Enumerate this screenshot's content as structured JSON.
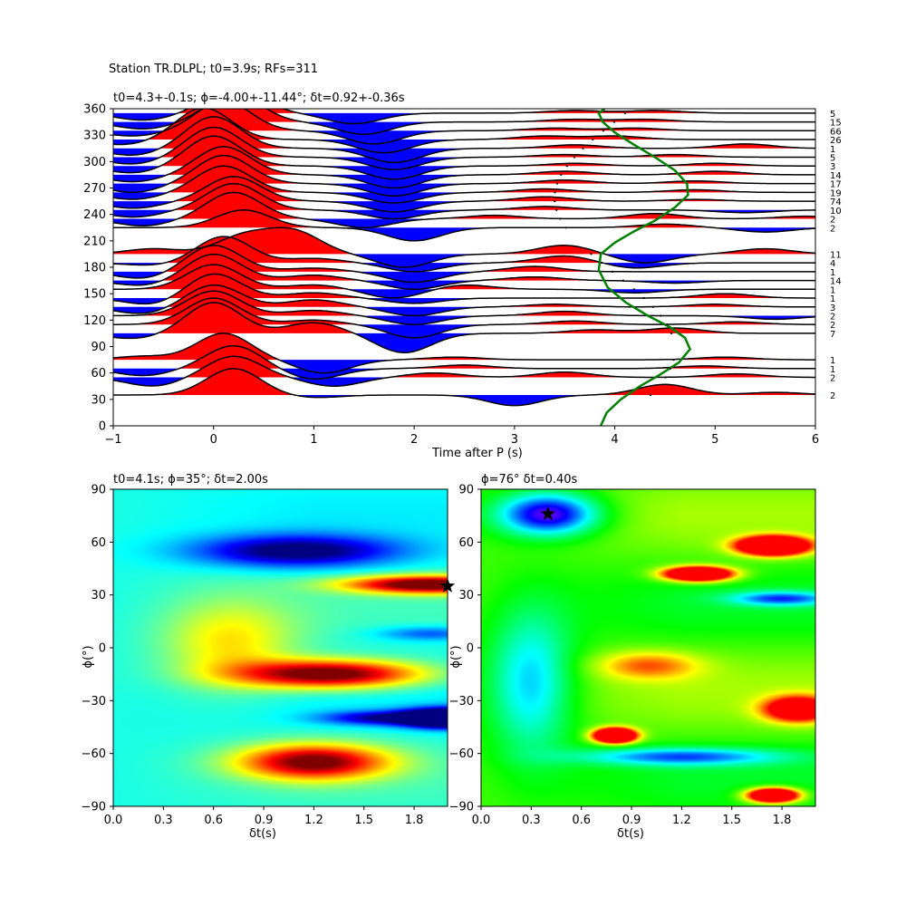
{
  "figure": {
    "suptitle": "Station TR.DLPL; t0=3.9s; RFs=311"
  },
  "chart_data": [
    {
      "type": "line",
      "panel": "receiver-functions-by-backazimuth",
      "title": "t0=4.3+-0.1s; ϕ=-4.00+-11.44°; δt=0.92+-0.36s",
      "xlabel": "Time after P (s)",
      "ylabel": "",
      "xlim": [
        -1,
        6
      ],
      "ylim": [
        0,
        360
      ],
      "xticks": [
        "−1",
        "0",
        "1",
        "2",
        "3",
        "4",
        "5",
        "6"
      ],
      "yticks": [
        "0",
        "30",
        "60",
        "90",
        "120",
        "150",
        "180",
        "210",
        "240",
        "270",
        "300",
        "330",
        "360"
      ],
      "fill_colors": {
        "positive": "#ff0000",
        "negative": "#0000ff"
      },
      "traces": [
        {
          "baz": 35,
          "count": "2",
          "peaks": [
            [
              0.2,
              30
            ],
            [
              1.0,
              -3
            ],
            [
              3.0,
              -12
            ],
            [
              4.5,
              12
            ],
            [
              5.6,
              3
            ]
          ]
        },
        {
          "baz": 55,
          "count": "2",
          "peaks": [
            [
              0.2,
              24
            ],
            [
              -0.6,
              -10
            ],
            [
              1.2,
              -10
            ],
            [
              2.2,
              5
            ],
            [
              3.5,
              6
            ],
            [
              5.2,
              4
            ]
          ]
        },
        {
          "baz": 65,
          "count": "1",
          "peaks": [
            [
              0.2,
              26
            ],
            [
              -0.7,
              -8
            ],
            [
              1.0,
              -12
            ],
            [
              2.5,
              4
            ],
            [
              4.9,
              3
            ]
          ]
        },
        {
          "baz": 75,
          "count": "1",
          "peaks": [
            [
              0.1,
              30
            ],
            [
              -0.7,
              4
            ],
            [
              1.1,
              -15
            ],
            [
              2.4,
              3
            ],
            [
              5.1,
              3
            ]
          ]
        },
        {
          "baz": 105,
          "count": "7",
          "peaks": [
            [
              0.0,
              35
            ],
            [
              -0.8,
              -6
            ],
            [
              1.0,
              12
            ],
            [
              1.9,
              -22
            ],
            [
              3.8,
              4
            ],
            [
              4.6,
              6
            ]
          ]
        },
        {
          "baz": 115,
          "count": "2",
          "peaks": [
            [
              0.0,
              30
            ],
            [
              1.0,
              5
            ],
            [
              2.0,
              -15
            ],
            [
              3.6,
              4
            ],
            [
              5.2,
              3
            ]
          ]
        },
        {
          "baz": 125,
          "count": "2",
          "peaks": [
            [
              0.0,
              28
            ],
            [
              1.0,
              6
            ],
            [
              2.0,
              -10
            ],
            [
              3.5,
              5
            ],
            [
              5.6,
              -4
            ]
          ]
        },
        {
          "baz": 135,
          "count": "3",
          "peaks": [
            [
              0.0,
              25
            ],
            [
              -0.7,
              -8
            ],
            [
              1.0,
              8
            ],
            [
              2.0,
              -10
            ],
            [
              3.4,
              3
            ],
            [
              5.0,
              3
            ]
          ]
        },
        {
          "baz": 145,
          "count": "1",
          "peaks": [
            [
              0.0,
              28
            ],
            [
              -0.6,
              -8
            ],
            [
              1.0,
              6
            ],
            [
              2.0,
              -6
            ],
            [
              5.1,
              5
            ]
          ]
        },
        {
          "baz": 155,
          "count": "1",
          "peaks": [
            [
              0.0,
              28
            ],
            [
              1.0,
              5
            ],
            [
              1.8,
              -10
            ],
            [
              2.5,
              5
            ],
            [
              4.2,
              -4
            ]
          ]
        },
        {
          "baz": 165,
          "count": "14",
          "peaks": [
            [
              0.0,
              30
            ],
            [
              -0.7,
              -6
            ],
            [
              1.0,
              6
            ],
            [
              2.0,
              -10
            ],
            [
              3.2,
              4
            ],
            [
              4.6,
              -3
            ]
          ]
        },
        {
          "baz": 175,
          "count": "1",
          "peaks": [
            [
              0.0,
              30
            ],
            [
              -0.7,
              -8
            ],
            [
              1.0,
              4
            ],
            [
              2.0,
              -12
            ],
            [
              3.2,
              6
            ]
          ]
        },
        {
          "baz": 185,
          "count": "4",
          "peaks": [
            [
              0.1,
              30
            ],
            [
              -0.6,
              -3
            ],
            [
              1.0,
              5
            ],
            [
              2.0,
              -10
            ],
            [
              3.5,
              8
            ],
            [
              4.2,
              -6
            ]
          ]
        },
        {
          "baz": 195,
          "count": "11",
          "peaks": [
            [
              0.3,
              20
            ],
            [
              -0.6,
              6
            ],
            [
              0.8,
              25
            ],
            [
              1.9,
              -15
            ],
            [
              3.5,
              10
            ],
            [
              4.3,
              -10
            ],
            [
              5.5,
              6
            ]
          ]
        },
        {
          "baz": 225,
          "count": "2",
          "peaks": [
            [
              0.3,
              20
            ],
            [
              2.0,
              -15
            ],
            [
              4.5,
              4
            ],
            [
              5.5,
              -5
            ]
          ]
        },
        {
          "baz": 235,
          "count": "2",
          "peaks": [
            [
              0.2,
              30
            ],
            [
              -0.7,
              -8
            ],
            [
              1.5,
              -10
            ],
            [
              2.8,
              4
            ],
            [
              4.4,
              6
            ],
            [
              5.9,
              3
            ]
          ]
        },
        {
          "baz": 245,
          "count": "10",
          "peaks": [
            [
              0.2,
              30
            ],
            [
              -0.8,
              -8
            ],
            [
              1.8,
              -10
            ],
            [
              3.3,
              4
            ],
            [
              5.3,
              -3
            ]
          ]
        },
        {
          "baz": 255,
          "count": "74",
          "peaks": [
            [
              0.2,
              28
            ],
            [
              -0.8,
              -8
            ],
            [
              1.8,
              -12
            ],
            [
              3.3,
              5
            ],
            [
              4.8,
              2
            ]
          ]
        },
        {
          "baz": 265,
          "count": "19",
          "peaks": [
            [
              0.1,
              30
            ],
            [
              -0.8,
              -8
            ],
            [
              1.8,
              -12
            ],
            [
              3.3,
              4
            ],
            [
              4.8,
              3
            ]
          ]
        },
        {
          "baz": 275,
          "count": "17",
          "peaks": [
            [
              0.1,
              32
            ],
            [
              -0.8,
              -10
            ],
            [
              1.8,
              -14
            ],
            [
              3.5,
              4
            ],
            [
              4.8,
              3
            ]
          ]
        },
        {
          "baz": 285,
          "count": "14",
          "peaks": [
            [
              0.1,
              32
            ],
            [
              -0.8,
              -8
            ],
            [
              1.8,
              -15
            ],
            [
              3.5,
              4
            ],
            [
              5.0,
              4
            ]
          ]
        },
        {
          "baz": 295,
          "count": "3",
          "peaks": [
            [
              0.0,
              34
            ],
            [
              -0.8,
              -8
            ],
            [
              1.8,
              -15
            ],
            [
              3.6,
              3
            ],
            [
              5.0,
              3
            ]
          ]
        },
        {
          "baz": 305,
          "count": "5",
          "peaks": [
            [
              0.0,
              34
            ],
            [
              -0.8,
              -8
            ],
            [
              1.8,
              -14
            ],
            [
              3.5,
              3
            ],
            [
              4.6,
              3
            ]
          ]
        },
        {
          "baz": 315,
          "count": "1",
          "peaks": [
            [
              0.0,
              36
            ],
            [
              -0.8,
              -8
            ],
            [
              1.8,
              -16
            ],
            [
              3.6,
              4
            ],
            [
              5.3,
              5
            ]
          ]
        },
        {
          "baz": 325,
          "count": "26",
          "peaks": [
            [
              -0.1,
              36
            ],
            [
              -0.9,
              -6
            ],
            [
              1.7,
              -15
            ],
            [
              3.3,
              4
            ],
            [
              4.0,
              4
            ]
          ]
        },
        {
          "baz": 335,
          "count": "66",
          "peaks": [
            [
              0.1,
              34
            ],
            [
              -0.8,
              -6
            ],
            [
              1.6,
              -15
            ],
            [
              3.4,
              3
            ],
            [
              4.2,
              3
            ]
          ]
        },
        {
          "baz": 345,
          "count": "15",
          "peaks": [
            [
              0.2,
              32
            ],
            [
              -0.7,
              -8
            ],
            [
              1.5,
              -14
            ],
            [
              3.6,
              3
            ],
            [
              4.3,
              3
            ]
          ]
        },
        {
          "baz": 355,
          "count": "5",
          "peaks": [
            [
              0.2,
              30
            ],
            [
              -0.7,
              -8
            ],
            [
              1.4,
              -12
            ],
            [
              3.6,
              3
            ],
            [
              4.4,
              3
            ]
          ]
        }
      ],
      "model_curve": {
        "name": "",
        "color": "#008000",
        "x": [
          3.86,
          3.92,
          4.06,
          4.25,
          4.45,
          4.64,
          4.75,
          4.7,
          4.55,
          4.33,
          4.11,
          3.93,
          3.84,
          3.86,
          4.0,
          4.18,
          4.4,
          4.6,
          4.73,
          4.72,
          4.6,
          4.4,
          4.18,
          4.0,
          3.88,
          3.84,
          3.9
        ],
        "y": [
          0,
          15,
          30,
          45,
          58,
          72,
          87,
          100,
          112,
          125,
          140,
          157,
          177,
          195,
          208,
          220,
          233,
          248,
          262,
          275,
          290,
          305,
          320,
          333,
          345,
          355,
          360
        ]
      }
    },
    {
      "type": "heatmap",
      "panel": "splitting-grid-left",
      "title": "t0=4.1s; ϕ=35°; δt=2.00s",
      "xlabel": "δt(s)",
      "ylabel": "ϕ(°)",
      "xlim": [
        0,
        2
      ],
      "ylim": [
        -90,
        90
      ],
      "xticks": [
        "0.0",
        "0.3",
        "0.6",
        "0.9",
        "1.2",
        "1.5",
        "1.8"
      ],
      "yticks": [
        "−90",
        "−60",
        "−30",
        "0",
        "30",
        "60",
        "90"
      ],
      "colormap": "jet",
      "best": {
        "dt": 2.0,
        "phi": 35
      },
      "blobs": [
        {
          "dt": 1.2,
          "phi": -65,
          "sdt": 0.45,
          "sphi": 10,
          "amp": 0.62
        },
        {
          "dt": 1.3,
          "phi": -15,
          "sdt": 0.55,
          "sphi": 8,
          "amp": 0.68
        },
        {
          "dt": 1.9,
          "phi": 36,
          "sdt": 0.5,
          "sphi": 5,
          "amp": 0.7
        },
        {
          "dt": 1.1,
          "phi": 55,
          "sdt": 0.6,
          "sphi": 9,
          "amp": -0.45
        },
        {
          "dt": 2.0,
          "phi": -40,
          "sdt": 0.25,
          "sphi": 5,
          "amp": -1.0
        },
        {
          "dt": 1.6,
          "phi": -40,
          "sdt": 0.35,
          "sphi": 4,
          "amp": -0.35
        },
        {
          "dt": 0.7,
          "phi": 2,
          "sdt": 0.4,
          "sphi": 25,
          "amp": 0.25
        },
        {
          "dt": 1.9,
          "phi": 8,
          "sdt": 0.3,
          "sphi": 4,
          "amp": -0.2
        }
      ]
    },
    {
      "type": "heatmap",
      "panel": "splitting-grid-right",
      "title": "ϕ=76° δt=0.40s",
      "xlabel": "δt(s)",
      "ylabel": "ϕ(°)",
      "xlim": [
        0,
        2
      ],
      "ylim": [
        -90,
        90
      ],
      "xticks": [
        "0.0",
        "0.3",
        "0.6",
        "0.9",
        "1.2",
        "1.5",
        "1.8"
      ],
      "yticks": [
        "−90",
        "−60",
        "−30",
        "0",
        "30",
        "60",
        "90"
      ],
      "colormap": "hsv",
      "best": {
        "dt": 0.4,
        "phi": 76
      },
      "blobs": [
        {
          "dt": 0.4,
          "phi": 76,
          "sdt": 0.3,
          "sphi": 12,
          "amp": 0.55
        },
        {
          "dt": 1.75,
          "phi": 58,
          "sdt": 0.2,
          "sphi": 5,
          "amp": -1.0
        },
        {
          "dt": 1.3,
          "phi": 42,
          "sdt": 0.2,
          "sphi": 4,
          "amp": -0.9
        },
        {
          "dt": 0.8,
          "phi": -50,
          "sdt": 0.12,
          "sphi": 4,
          "amp": -1.0
        },
        {
          "dt": 1.75,
          "phi": -84,
          "sdt": 0.15,
          "sphi": 4,
          "amp": -0.9
        },
        {
          "dt": 1.9,
          "phi": -35,
          "sdt": 0.2,
          "sphi": 7,
          "amp": -0.6
        },
        {
          "dt": 1.8,
          "phi": 28,
          "sdt": 0.3,
          "sphi": 4,
          "amp": 0.35
        },
        {
          "dt": 0.3,
          "phi": -20,
          "sdt": 0.25,
          "sphi": 40,
          "amp": 0.3
        },
        {
          "dt": 1.2,
          "phi": -62,
          "sdt": 0.6,
          "sphi": 5,
          "amp": 0.35
        },
        {
          "dt": 1.0,
          "phi": -10,
          "sdt": 0.3,
          "sphi": 8,
          "amp": -0.25
        }
      ]
    }
  ]
}
